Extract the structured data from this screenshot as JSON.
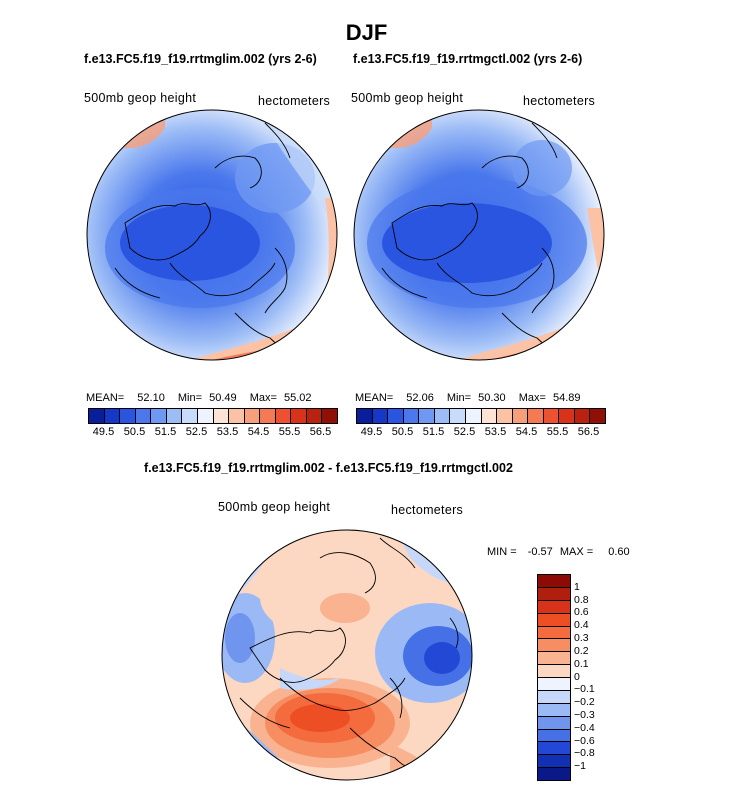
{
  "title": "DJF",
  "panels": [
    {
      "case": "f.e13.FC5.f19_f19.rrtmglim.002 (yrs 2-6)",
      "variable": "500mb geop height",
      "units": "hectometers",
      "mean_label": "MEAN=",
      "mean": "52.10",
      "min_label": "Min=",
      "min": "50.49",
      "max_label": "Max=",
      "max": "55.02"
    },
    {
      "case": "f.e13.FC5.f19_f19.rrtmgctl.002 (yrs 2-6)",
      "variable": "500mb geop height",
      "units": "hectometers",
      "mean_label": "MEAN=",
      "mean": "52.06",
      "min_label": "Min=",
      "min": "50.30",
      "max_label": "Max=",
      "max": "54.89"
    }
  ],
  "colorbar_top": {
    "ticks": [
      "49.5",
      "50.5",
      "51.5",
      "52.5",
      "53.5",
      "54.5",
      "55.5",
      "56.5"
    ],
    "colors": [
      "#0a1e9a",
      "#1638c9",
      "#2a55e0",
      "#4a78ec",
      "#6f98f2",
      "#9cbcf6",
      "#c8dbfa",
      "#eef3fd",
      "#fde3d6",
      "#fbc2a6",
      "#f79f7b",
      "#f37a55",
      "#ec5131",
      "#d9321b",
      "#b9220f",
      "#8e1006"
    ]
  },
  "diff": {
    "title": "f.e13.FC5.f19_f19.rrtmglim.002 - f.e13.FC5.f19_f19.rrtmgctl.002",
    "variable": "500mb geop height",
    "units": "hectometers",
    "min_label": "MIN =",
    "min": "-0.57",
    "max_label": "MAX =",
    "max": "0.60"
  },
  "colorbar_diff": {
    "ticks": [
      "1",
      "0.8",
      "0.6",
      "0.4",
      "0.3",
      "0.2",
      "0.1",
      "0",
      "−0.1",
      "−0.2",
      "−0.3",
      "−0.4",
      "−0.6",
      "−0.8",
      "−1"
    ],
    "colors": [
      "#8e0b05",
      "#b01f0e",
      "#d8321a",
      "#ee4e24",
      "#f46b3d",
      "#f68e62",
      "#f9b390",
      "#fcd7c2",
      "#eef3fd",
      "#c5d8fa",
      "#9bbaf5",
      "#6f95ef",
      "#4670e6",
      "#2348d6",
      "#1230b4",
      "#0a1888"
    ]
  }
}
